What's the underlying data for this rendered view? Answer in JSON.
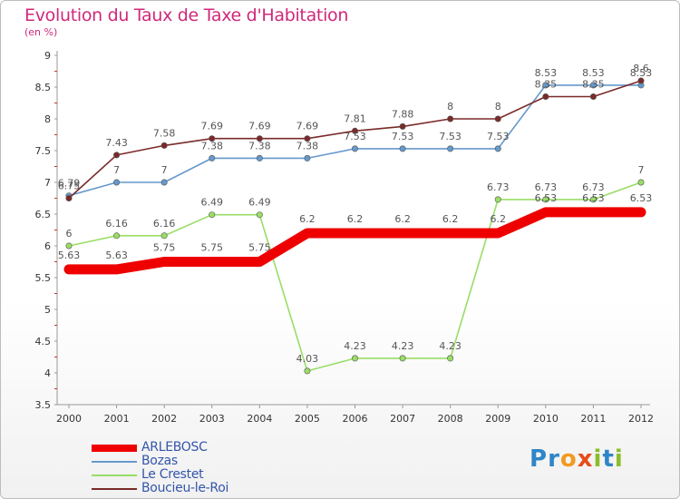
{
  "title": "Evolution du Taux de Taxe d'Habitation",
  "subtitle": "(en %)",
  "logo": {
    "text": "Proxiti",
    "letters": [
      {
        "ch": "P",
        "color": "#2e86c8"
      },
      {
        "ch": "r",
        "color": "#2e86c8"
      },
      {
        "ch": "o",
        "color": "#f29a1f"
      },
      {
        "ch": "x",
        "color": "#e84b1a"
      },
      {
        "ch": "i",
        "color": "#8bbd2a"
      },
      {
        "ch": "t",
        "color": "#2e86c8"
      },
      {
        "ch": "i",
        "color": "#8bbd2a"
      }
    ]
  },
  "chart_data": {
    "type": "line",
    "x": [
      "2000",
      "2001",
      "2002",
      "2003",
      "2004",
      "2005",
      "2006",
      "2007",
      "2008",
      "2009",
      "2010",
      "2011",
      "2012"
    ],
    "ylim": [
      3.5,
      9
    ],
    "yticks": [
      "3.5",
      "4",
      "4.5",
      "5",
      "5.5",
      "6",
      "6.5",
      "7",
      "7.5",
      "8",
      "8.5",
      "9"
    ],
    "grid": false,
    "legend": "bottom-left",
    "series": [
      {
        "name": "ARLEBOSC",
        "color": "#ee0000",
        "values": [
          5.63,
          5.63,
          5.75,
          5.75,
          5.75,
          6.2,
          6.2,
          6.2,
          6.2,
          6.2,
          6.53,
          6.53,
          6.53
        ],
        "labels": [
          "5.63",
          "5.63",
          "5.75",
          "5.75",
          "5.75",
          "6.2",
          "6.2",
          "6.2",
          "6.2",
          "6.2",
          "6.53",
          "6.53",
          "6.53"
        ]
      },
      {
        "name": "Bozas",
        "color": "#6699cc",
        "values": [
          6.79,
          7,
          7,
          7.38,
          7.38,
          7.38,
          7.53,
          7.53,
          7.53,
          7.53,
          8.53,
          8.53,
          8.53
        ],
        "labels": [
          "6.79",
          "7",
          "7",
          "7.38",
          "7.38",
          "7.38",
          "7.53",
          "7.53",
          "7.53",
          "7.53",
          "8.53",
          "8.53",
          "8.53"
        ]
      },
      {
        "name": "Le Crestet",
        "color": "#99dd66",
        "values": [
          6,
          6.16,
          6.16,
          6.49,
          6.49,
          4.03,
          4.23,
          4.23,
          4.23,
          6.73,
          6.73,
          6.73,
          7
        ],
        "labels": [
          "6",
          "6.16",
          "6.16",
          "6.49",
          "6.49",
          "4.03",
          "4.23",
          "4.23",
          "4.23",
          "6.73",
          "6.73",
          "6.73",
          "7"
        ]
      },
      {
        "name": "Boucieu-le-Roi",
        "color": "#7a2a2a",
        "values": [
          6.75,
          7.43,
          7.58,
          7.69,
          7.69,
          7.69,
          7.81,
          7.88,
          8,
          8,
          8.35,
          8.35,
          8.6
        ],
        "labels": [
          "6.75",
          "7.43",
          "7.58",
          "7.69",
          "7.69",
          "7.69",
          "7.81",
          "7.88",
          "8",
          "8",
          "8.35",
          "8.35",
          "8.6"
        ]
      }
    ]
  }
}
